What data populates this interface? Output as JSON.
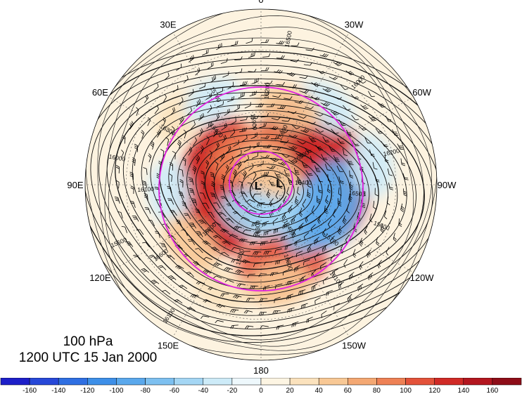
{
  "title": {
    "level": "100 hPa",
    "datetime": "1200 UTC 15 Jan 2000"
  },
  "longitude_labels": [
    {
      "label": "0",
      "lon": 0
    },
    {
      "label": "30W",
      "lon": -30
    },
    {
      "label": "60W",
      "lon": -60
    },
    {
      "label": "90W",
      "lon": -90
    },
    {
      "label": "120W",
      "lon": -120
    },
    {
      "label": "150W",
      "lon": -150
    },
    {
      "label": "180",
      "lon": 180
    },
    {
      "label": "150E",
      "lon": 150
    },
    {
      "label": "120E",
      "lon": 120
    },
    {
      "label": "90E",
      "lon": 90
    },
    {
      "label": "60E",
      "lon": 60
    },
    {
      "label": "30E",
      "lon": 30
    }
  ],
  "pressure_centers": [
    {
      "label": "L",
      "lat": 88,
      "lon": 100
    },
    {
      "label": "L",
      "lat": 78,
      "lon": -85
    }
  ],
  "contour_labels": [
    "16400",
    "16300",
    "16200",
    "16100",
    "16000",
    "15900",
    "15800",
    "15700",
    "15600",
    "15500",
    "15600",
    "16000",
    "16300",
    "16200",
    "16100",
    "15900",
    "15700",
    "16100",
    "16000",
    "16300",
    "16400",
    "16500",
    "16600",
    "16500",
    "16400"
  ],
  "colorbar": {
    "ticks": [
      "-160",
      "-140",
      "-120",
      "-100",
      "-80",
      "-60",
      "-40",
      "-20",
      "0",
      "20",
      "40",
      "60",
      "80",
      "100",
      "120",
      "140",
      "160"
    ],
    "colors": [
      "#1d1fc8",
      "#2748d8",
      "#2f6fe2",
      "#3d8fe8",
      "#5aa8ec",
      "#7dc0f0",
      "#a4d6f4",
      "#cdebf8",
      "#eef8fc",
      "#fdf5e3",
      "#fbe2bd",
      "#f8c895",
      "#f4a873",
      "#ee8155",
      "#e3523a",
      "#d02a26",
      "#b3161f",
      "#8e0d18"
    ]
  },
  "anomaly_blobs": [
    {
      "lat": 62,
      "lon": 100,
      "value": 140
    },
    {
      "lat": 58,
      "lon": 115,
      "value": 120
    },
    {
      "lat": 62,
      "lon": 70,
      "value": 130
    },
    {
      "lat": 55,
      "lon": -55,
      "value": 150
    },
    {
      "lat": 45,
      "lon": -75,
      "value": 120
    },
    {
      "lat": 45,
      "lon": -95,
      "value": 130
    },
    {
      "lat": 40,
      "lon": -165,
      "value": 100
    },
    {
      "lat": 70,
      "lon": 20,
      "value": 80
    },
    {
      "lat": 52,
      "lon": -120,
      "value": -80
    },
    {
      "lat": 45,
      "lon": -105,
      "value": -100
    },
    {
      "lat": 72,
      "lon": 170,
      "value": -60
    },
    {
      "lat": 75,
      "lon": -140,
      "value": -50
    },
    {
      "lat": 35,
      "lon": 95,
      "value": -40
    },
    {
      "lat": 30,
      "lon": -40,
      "value": -40
    },
    {
      "lat": 35,
      "lon": 130,
      "value": 40
    },
    {
      "lat": 25,
      "lon": 160,
      "value": 30
    },
    {
      "lat": 30,
      "lon": -170,
      "value": 40
    },
    {
      "lat": 28,
      "lon": 50,
      "value": 30
    },
    {
      "lat": 32,
      "lon": 30,
      "value": -30
    },
    {
      "lat": 25,
      "lon": -80,
      "value": -40
    },
    {
      "lat": 80,
      "lon": -30,
      "value": 50
    },
    {
      "lat": 40,
      "lon": -20,
      "value": 40
    }
  ]
}
